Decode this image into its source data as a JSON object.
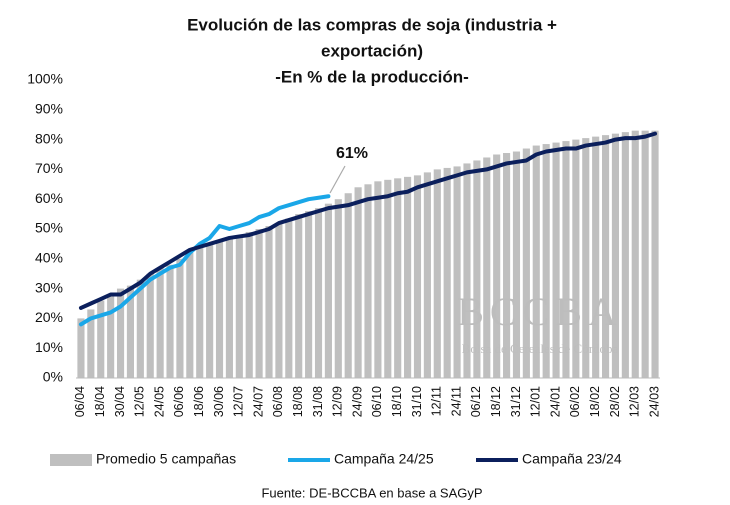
{
  "chart_data": {
    "type": "bar-line",
    "title": [
      "Evolución de las compras de soja (industria +",
      "exportación)"
    ],
    "subtitle": "-En % de la producción-",
    "annotation": "61%",
    "watermark": [
      "BCCBA",
      "Bolsa de Cereales de Córdoba"
    ],
    "source": "Fuente: DE-BCCBA en base a SAGyP",
    "categories": [
      "06/04",
      null,
      "18/04",
      null,
      "30/04",
      null,
      "12/05",
      null,
      "24/05",
      null,
      "06/06",
      null,
      "18/06",
      null,
      "30/06",
      null,
      "12/07",
      null,
      "24/07",
      null,
      "06/08",
      null,
      "18/08",
      null,
      "31/08",
      null,
      "12/09",
      null,
      "24/09",
      null,
      "06/10",
      null,
      "18/10",
      null,
      "31/10",
      null,
      "12/11",
      null,
      "24/11",
      null,
      "06/12",
      null,
      "18/12",
      null,
      "31/12",
      null,
      "12/01",
      null,
      "24/01",
      null,
      "06/02",
      null,
      "18/02",
      null,
      "28/02",
      null,
      "12/03",
      null,
      "24/03"
    ],
    "ylim": [
      0,
      100
    ],
    "yticks": [
      {
        "value": 0,
        "label": "0%"
      },
      {
        "value": 10,
        "label": "10%"
      },
      {
        "value": 20,
        "label": "20%"
      },
      {
        "value": 30,
        "label": "30%"
      },
      {
        "value": 40,
        "label": "40%"
      },
      {
        "value": 50,
        "label": "50%"
      },
      {
        "value": 60,
        "label": "60%"
      },
      {
        "value": 70,
        "label": "70%"
      },
      {
        "value": 80,
        "label": "80%"
      },
      {
        "value": 90,
        "label": "90%"
      },
      {
        "value": 100,
        "label": "100%"
      }
    ],
    "series": [
      {
        "name": "Promedio 5 campañas",
        "type": "bar",
        "color": "#bfbfbf",
        "values": [
          20,
          23,
          26,
          28,
          30,
          31,
          33,
          35,
          37,
          38,
          40,
          42,
          44,
          45,
          46,
          47,
          48,
          49,
          50,
          51,
          52,
          53.5,
          55,
          56,
          57,
          58.5,
          60,
          62,
          64,
          65,
          66,
          66.5,
          67,
          67.5,
          68,
          69,
          70,
          70.5,
          71,
          72,
          73,
          74,
          75,
          75.5,
          76,
          77,
          78,
          78.5,
          79,
          79.5,
          80,
          80.5,
          81,
          81.5,
          82,
          82.5,
          83,
          83,
          83
        ]
      },
      {
        "name": "Campaña 24/25",
        "type": "line",
        "color": "#1aa7e8",
        "values": [
          18,
          20,
          21,
          22,
          24,
          27,
          30,
          33,
          35,
          37,
          38,
          42,
          45,
          47,
          51,
          50,
          51,
          52,
          54,
          55,
          57,
          58,
          59,
          60,
          60.5,
          61,
          null,
          null,
          null,
          null,
          null,
          null,
          null,
          null,
          null,
          null,
          null,
          null,
          null,
          null,
          null,
          null,
          null,
          null,
          null,
          null,
          null,
          null,
          null,
          null,
          null,
          null,
          null,
          null,
          null,
          null,
          null,
          null,
          null
        ]
      },
      {
        "name": "Campaña 23/24",
        "type": "line",
        "color": "#0b1f5c",
        "values": [
          23.5,
          25,
          26.5,
          28,
          28,
          30,
          32,
          35,
          37,
          39,
          41,
          43,
          44,
          45,
          46,
          47,
          47.5,
          48,
          49,
          50,
          52,
          53,
          54,
          55,
          56,
          57,
          57.5,
          58,
          59,
          60,
          60.5,
          61,
          62,
          62.5,
          64,
          65,
          66,
          67,
          68,
          69,
          69.5,
          70,
          71,
          72,
          72.5,
          73,
          75,
          76,
          76.5,
          77,
          77,
          78,
          78.5,
          79,
          80,
          80.5,
          80.5,
          81,
          82
        ]
      }
    ]
  }
}
